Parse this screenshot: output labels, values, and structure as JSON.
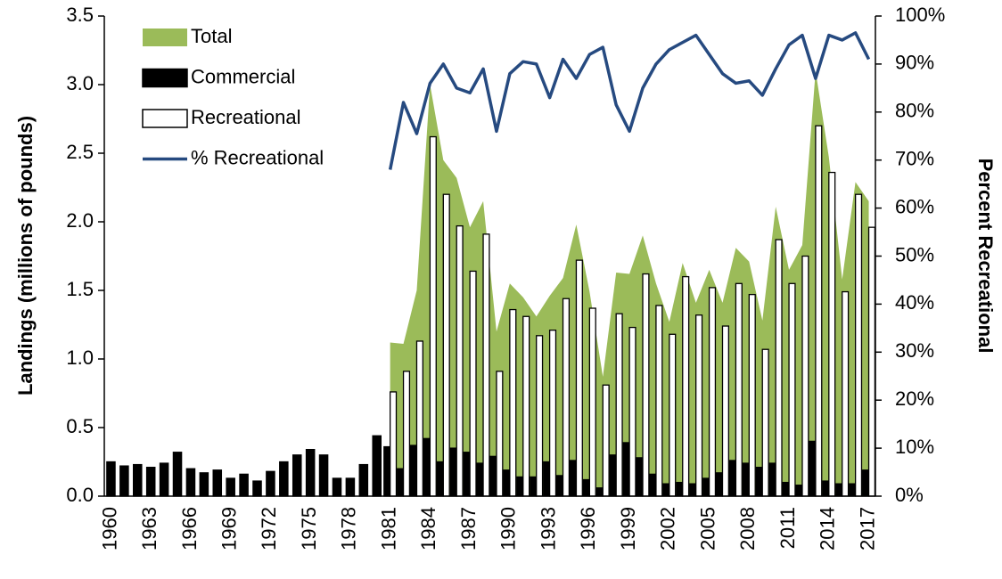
{
  "chart_data": {
    "type": "bar-area-line",
    "y_label": "Landings (millions of pounds)",
    "y2_label": "Percent Recreational",
    "legend": "upper left",
    "categories": [
      "1960",
      null,
      null,
      "1963",
      null,
      null,
      "1966",
      null,
      null,
      "1969",
      null,
      null,
      "1972",
      null,
      null,
      "1975",
      null,
      null,
      "1978",
      null,
      null,
      "1981",
      null,
      null,
      "1984",
      null,
      null,
      "1987",
      null,
      null,
      "1990",
      null,
      null,
      "1993",
      null,
      null,
      "1996",
      null,
      null,
      "1999",
      null,
      null,
      "2002",
      null,
      null,
      "2005",
      null,
      null,
      "2008",
      null,
      null,
      "2011",
      null,
      null,
      "2014",
      null,
      null,
      "2017"
    ],
    "ylim": [
      0,
      3.5
    ],
    "yticks": [
      {
        "value": 0,
        "label": "0.0"
      },
      0.5,
      {
        "value": 1,
        "label": "1.0"
      },
      1.5,
      {
        "value": 2,
        "label": "2.0"
      },
      2.5,
      {
        "value": 3,
        "label": "3.0"
      },
      3.5
    ],
    "y2lim": [
      0,
      100
    ],
    "y2ticks": [
      {
        "value": 0,
        "label": "0%"
      },
      {
        "value": 10,
        "label": "10%"
      },
      {
        "value": 20,
        "label": "20%"
      },
      {
        "value": 30,
        "label": "30%"
      },
      {
        "value": 40,
        "label": "40%"
      },
      {
        "value": 50,
        "label": "50%"
      },
      {
        "value": 60,
        "label": "60%"
      },
      {
        "value": 70,
        "label": "70%"
      },
      {
        "value": 80,
        "label": "80%"
      },
      {
        "value": 90,
        "label": "90%"
      },
      {
        "value": 100,
        "label": "100%"
      }
    ],
    "series": [
      {
        "name": "Total",
        "kind": "area",
        "color": "#9bbb59",
        "values": [
          null,
          null,
          null,
          null,
          null,
          null,
          null,
          null,
          null,
          null,
          null,
          null,
          null,
          null,
          null,
          null,
          null,
          null,
          null,
          null,
          null,
          1.12,
          1.11,
          1.5,
          3.0,
          2.45,
          2.32,
          1.96,
          2.15,
          1.2,
          1.55,
          1.45,
          1.31,
          1.46,
          1.59,
          1.98,
          1.49,
          0.87,
          1.63,
          1.62,
          1.9,
          1.55,
          1.27,
          1.7,
          1.41,
          1.65,
          1.41,
          1.81,
          1.71,
          1.28,
          2.11,
          1.65,
          1.83,
          3.1,
          2.47,
          1.58,
          2.29,
          2.15
        ]
      },
      {
        "name": "Commercial",
        "kind": "bar",
        "color": "#000000",
        "values": [
          0.25,
          0.22,
          0.23,
          0.21,
          0.24,
          0.32,
          0.2,
          0.17,
          0.19,
          0.13,
          0.16,
          0.11,
          0.18,
          0.25,
          0.3,
          0.34,
          0.3,
          0.13,
          0.13,
          0.23,
          0.44,
          0.36,
          0.2,
          0.37,
          0.42,
          0.25,
          0.35,
          0.32,
          0.24,
          0.29,
          0.19,
          0.14,
          0.14,
          0.25,
          0.15,
          0.26,
          0.12,
          0.06,
          0.3,
          0.39,
          0.28,
          0.16,
          0.09,
          0.1,
          0.09,
          0.13,
          0.17,
          0.26,
          0.24,
          0.21,
          0.24,
          0.1,
          0.08,
          0.4,
          0.11,
          0.09,
          0.09,
          0.19
        ]
      },
      {
        "name": "Recreational",
        "kind": "bar",
        "color": "#ffffff",
        "values": [
          null,
          null,
          null,
          null,
          null,
          null,
          null,
          null,
          null,
          null,
          null,
          null,
          null,
          null,
          null,
          null,
          null,
          null,
          null,
          null,
          null,
          0.76,
          0.91,
          1.13,
          2.62,
          2.2,
          1.97,
          1.64,
          1.91,
          0.91,
          1.36,
          1.31,
          1.17,
          1.21,
          1.44,
          1.72,
          1.37,
          0.81,
          1.33,
          1.23,
          1.62,
          1.39,
          1.18,
          1.6,
          1.32,
          1.52,
          1.24,
          1.55,
          1.47,
          1.07,
          1.87,
          1.55,
          1.75,
          2.7,
          2.36,
          1.49,
          2.2,
          1.96
        ]
      },
      {
        "name": "% Recreational",
        "kind": "line",
        "axis": "y2",
        "color": "#264a80",
        "values": [
          null,
          null,
          null,
          null,
          null,
          null,
          null,
          null,
          null,
          null,
          null,
          null,
          null,
          null,
          null,
          null,
          null,
          null,
          null,
          null,
          null,
          68,
          82,
          75.5,
          86,
          90,
          85,
          84,
          89,
          76,
          88,
          90.5,
          90,
          83,
          91,
          87,
          92,
          93.5,
          81.5,
          76,
          85,
          90,
          93,
          94.5,
          96,
          92,
          88,
          86,
          86.5,
          83.5,
          89,
          94,
          96,
          87,
          96,
          95,
          96.5,
          91
        ]
      }
    ]
  }
}
